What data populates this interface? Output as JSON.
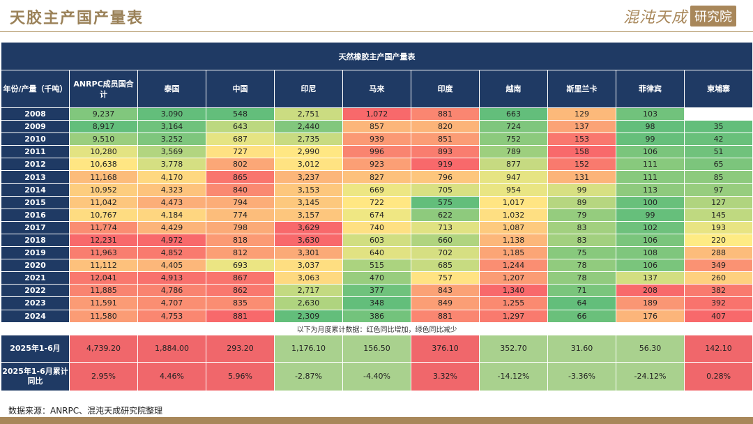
{
  "page": {
    "title": "天胶主产国产量表",
    "brand_name": "混沌天成",
    "brand_box": "研究院"
  },
  "table": {
    "banner": "天然橡胶主产国产量表",
    "header": [
      "年份/产量（千吨）",
      "ANRPC成员国合计",
      "泰国",
      "中国",
      "印尼",
      "马来",
      "印度",
      "越南",
      "斯里兰卡",
      "菲律宾",
      "柬埔寨"
    ],
    "rows": [
      {
        "year": "2008",
        "values": [
          "9,237",
          "3,090",
          "548",
          "2,751",
          "1,072",
          "881",
          "663",
          "129",
          "103",
          ""
        ]
      },
      {
        "year": "2009",
        "values": [
          "8,917",
          "3,164",
          "643",
          "2,440",
          "857",
          "820",
          "724",
          "137",
          "98",
          "35"
        ]
      },
      {
        "year": "2010",
        "values": [
          "9,510",
          "3,252",
          "687",
          "2,735",
          "939",
          "851",
          "752",
          "153",
          "99",
          "42"
        ]
      },
      {
        "year": "2011",
        "values": [
          "10,280",
          "3,569",
          "727",
          "2,990",
          "996",
          "893",
          "789",
          "158",
          "106",
          "51"
        ]
      },
      {
        "year": "2012",
        "values": [
          "10,638",
          "3,778",
          "802",
          "3,012",
          "923",
          "919",
          "877",
          "152",
          "111",
          "65"
        ]
      },
      {
        "year": "2013",
        "values": [
          "11,168",
          "4,170",
          "865",
          "3,237",
          "827",
          "796",
          "947",
          "131",
          "111",
          "85"
        ]
      },
      {
        "year": "2014",
        "values": [
          "10,952",
          "4,323",
          "840",
          "3,153",
          "669",
          "705",
          "954",
          "99",
          "113",
          "97"
        ]
      },
      {
        "year": "2015",
        "values": [
          "11,042",
          "4,473",
          "794",
          "3,145",
          "722",
          "575",
          "1,017",
          "89",
          "100",
          "127"
        ]
      },
      {
        "year": "2016",
        "values": [
          "10,767",
          "4,184",
          "774",
          "3,157",
          "674",
          "622",
          "1,032",
          "79",
          "99",
          "145"
        ]
      },
      {
        "year": "2017",
        "values": [
          "11,774",
          "4,429",
          "798",
          "3,629",
          "740",
          "713",
          "1,087",
          "83",
          "102",
          "193"
        ]
      },
      {
        "year": "2018",
        "values": [
          "12,231",
          "4,972",
          "818",
          "3,630",
          "603",
          "660",
          "1,138",
          "83",
          "106",
          "220"
        ]
      },
      {
        "year": "2019",
        "values": [
          "11,963",
          "4,852",
          "812",
          "3,301",
          "640",
          "702",
          "1,185",
          "75",
          "108",
          "288"
        ]
      },
      {
        "year": "2020",
        "values": [
          "11,112",
          "4,405",
          "693",
          "3,037",
          "515",
          "685",
          "1,244",
          "78",
          "106",
          "349"
        ]
      },
      {
        "year": "2021",
        "values": [
          "12,041",
          "4,913",
          "867",
          "3,063",
          "470",
          "757",
          "1,207",
          "78",
          "137",
          "260"
        ]
      },
      {
        "year": "2022",
        "values": [
          "11,885",
          "4,786",
          "862",
          "2,717",
          "377",
          "843",
          "1,340",
          "71",
          "208",
          "382"
        ]
      },
      {
        "year": "2023",
        "values": [
          "11,591",
          "4,707",
          "835",
          "2,630",
          "348",
          "849",
          "1,255",
          "64",
          "189",
          "392"
        ]
      },
      {
        "year": "2024",
        "values": [
          "11,580",
          "4,753",
          "881",
          "2,309",
          "386",
          "881",
          "1,297",
          "66",
          "176",
          "407"
        ]
      }
    ],
    "note": "以下为月度累计数据：红色同比增加，绿色同比减少",
    "summary": {
      "label": "2025年1-6月",
      "values": [
        "4,739.20",
        "1,884.00",
        "293.20",
        "1,176.10",
        "156.50",
        "376.10",
        "352.70",
        "31.60",
        "56.30",
        "142.10"
      ]
    },
    "yoy": {
      "label": "2025年1-6月累计同比",
      "values": [
        "2.95%",
        "4.46%",
        "5.96%",
        "-2.87%",
        "-4.40%",
        "3.32%",
        "-14.12%",
        "-3.36%",
        "-24.12%",
        "0.28%"
      ]
    },
    "colors": {
      "header_bg": "#1f3a64",
      "increase_red": "#f0676b",
      "decrease_green": "#a9d18e",
      "scale_low_green": "#63be7b",
      "scale_mid_yellow": "#ffeb84",
      "scale_high_red": "#f8696b"
    }
  },
  "footer": {
    "source": "数据来源：ANRPC、混沌天成研究院整理"
  }
}
